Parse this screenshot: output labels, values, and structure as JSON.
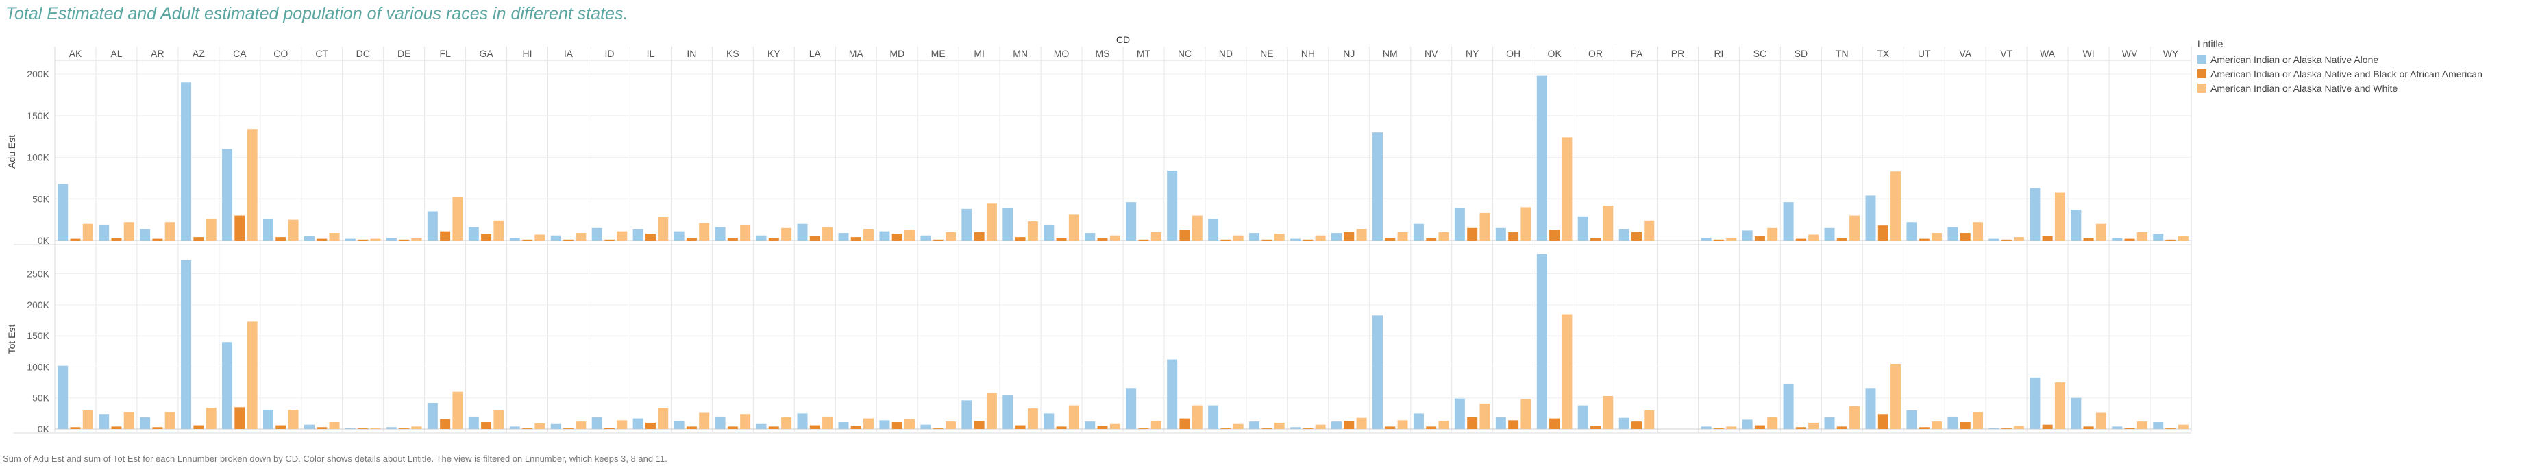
{
  "title": "Total Estimated and Adult estimated population of various races in different states.",
  "caption": "Sum of Adu Est and sum of Tot Est for each Lnnumber broken down by CD.  Color shows details about Lntitle. The view is filtered on Lnnumber, which keeps 3, 8 and 11.",
  "legend": {
    "title": "Lntitle",
    "items": [
      {
        "label": "American Indian or Alaska Native Alone",
        "color": "#9ecae9"
      },
      {
        "label": "American Indian or Alaska Native and Black or African American",
        "color": "#e8892e"
      },
      {
        "label": "American Indian or Alaska Native and White",
        "color": "#fbbf7e"
      }
    ]
  },
  "chart_data": {
    "type": "bar",
    "column_header": "CD",
    "categories": [
      "AK",
      "AL",
      "AR",
      "AZ",
      "CA",
      "CO",
      "CT",
      "DC",
      "DE",
      "FL",
      "GA",
      "HI",
      "IA",
      "ID",
      "IL",
      "IN",
      "KS",
      "KY",
      "LA",
      "MA",
      "MD",
      "ME",
      "MI",
      "MN",
      "MO",
      "MS",
      "MT",
      "NC",
      "ND",
      "NE",
      "NH",
      "NJ",
      "NM",
      "NV",
      "NY",
      "OH",
      "OK",
      "OR",
      "PA",
      "PR",
      "RI",
      "SC",
      "SD",
      "TN",
      "TX",
      "UT",
      "VA",
      "VT",
      "WA",
      "WI",
      "WV",
      "WY"
    ],
    "series_labels": [
      "American Indian or Alaska Native Alone",
      "American Indian or Alaska Native and Black or African American",
      "American Indian or Alaska Native and White"
    ],
    "panels": [
      {
        "ylabel": "Adu Est",
        "ylim": [
          0,
          210000
        ],
        "ticks": [
          0,
          50000,
          100000,
          150000,
          200000
        ],
        "tick_labels": [
          "0K",
          "50K",
          "100K",
          "150K",
          "200K"
        ],
        "values": [
          [
            68000,
            2000,
            20000
          ],
          [
            19000,
            3000,
            22000
          ],
          [
            14000,
            2000,
            22000
          ],
          [
            190000,
            4000,
            26000
          ],
          [
            110000,
            30000,
            134000
          ],
          [
            26000,
            4000,
            25000
          ],
          [
            5000,
            2000,
            9000
          ],
          [
            2000,
            1000,
            2000
          ],
          [
            3000,
            1000,
            3000
          ],
          [
            35000,
            11000,
            52000
          ],
          [
            16000,
            8000,
            24000
          ],
          [
            3000,
            1000,
            7000
          ],
          [
            6000,
            1000,
            9000
          ],
          [
            15000,
            1000,
            11000
          ],
          [
            14000,
            8000,
            28000
          ],
          [
            11000,
            3000,
            21000
          ],
          [
            16000,
            3000,
            19000
          ],
          [
            6000,
            3000,
            15000
          ],
          [
            20000,
            5000,
            16000
          ],
          [
            9000,
            4000,
            14000
          ],
          [
            11000,
            8000,
            13000
          ],
          [
            6000,
            1000,
            10000
          ],
          [
            38000,
            10000,
            45000
          ],
          [
            39000,
            4000,
            23000
          ],
          [
            19000,
            3000,
            31000
          ],
          [
            9000,
            3000,
            6000
          ],
          [
            46000,
            1000,
            10000
          ],
          [
            84000,
            13000,
            30000
          ],
          [
            26000,
            1000,
            6000
          ],
          [
            9000,
            1000,
            8000
          ],
          [
            2000,
            1000,
            6000
          ],
          [
            9000,
            10000,
            14000
          ],
          [
            130000,
            3000,
            10000
          ],
          [
            20000,
            3000,
            10000
          ],
          [
            39000,
            15000,
            33000
          ],
          [
            15000,
            10000,
            40000
          ],
          [
            198000,
            13000,
            124000
          ],
          [
            29000,
            3000,
            42000
          ],
          [
            14000,
            10000,
            24000
          ],
          [
            0,
            0,
            0
          ],
          [
            3000,
            1000,
            3000
          ],
          [
            12000,
            5000,
            15000
          ],
          [
            46000,
            2000,
            7000
          ],
          [
            15000,
            3000,
            30000
          ],
          [
            54000,
            18000,
            83000
          ],
          [
            22000,
            2000,
            9000
          ],
          [
            16000,
            9000,
            22000
          ],
          [
            2000,
            1000,
            4000
          ],
          [
            63000,
            5000,
            58000
          ],
          [
            37000,
            3000,
            20000
          ],
          [
            3000,
            2000,
            10000
          ],
          [
            8000,
            1000,
            5000
          ]
        ]
      },
      {
        "ylabel": "Tot Est",
        "ylim": [
          0,
          285000
        ],
        "ticks": [
          0,
          50000,
          100000,
          150000,
          200000,
          250000
        ],
        "tick_labels": [
          "0K",
          "50K",
          "100K",
          "150K",
          "200K",
          "250K"
        ],
        "values": [
          [
            102000,
            3000,
            30000
          ],
          [
            24000,
            4000,
            27000
          ],
          [
            19000,
            3000,
            27000
          ],
          [
            272000,
            6000,
            34000
          ],
          [
            140000,
            35000,
            173000
          ],
          [
            31000,
            6000,
            31000
          ],
          [
            7000,
            3000,
            11000
          ],
          [
            2000,
            1000,
            2000
          ],
          [
            3000,
            1000,
            4000
          ],
          [
            42000,
            16000,
            60000
          ],
          [
            20000,
            11000,
            30000
          ],
          [
            4000,
            1000,
            9000
          ],
          [
            8000,
            1000,
            12000
          ],
          [
            19000,
            2000,
            14000
          ],
          [
            17000,
            10000,
            34000
          ],
          [
            13000,
            4000,
            26000
          ],
          [
            20000,
            4000,
            24000
          ],
          [
            8000,
            4000,
            19000
          ],
          [
            25000,
            6000,
            20000
          ],
          [
            11000,
            5000,
            17000
          ],
          [
            14000,
            11000,
            16000
          ],
          [
            7000,
            1000,
            12000
          ],
          [
            46000,
            13000,
            58000
          ],
          [
            55000,
            6000,
            33000
          ],
          [
            25000,
            4000,
            38000
          ],
          [
            12000,
            5000,
            8000
          ],
          [
            66000,
            1000,
            13000
          ],
          [
            112000,
            17000,
            38000
          ],
          [
            38000,
            1000,
            8000
          ],
          [
            12000,
            1000,
            10000
          ],
          [
            3000,
            1000,
            7000
          ],
          [
            12000,
            13000,
            18000
          ],
          [
            183000,
            4000,
            14000
          ],
          [
            25000,
            4000,
            13000
          ],
          [
            49000,
            19000,
            41000
          ],
          [
            19000,
            14000,
            48000
          ],
          [
            282000,
            17000,
            185000
          ],
          [
            38000,
            5000,
            53000
          ],
          [
            18000,
            12000,
            30000
          ],
          [
            0,
            0,
            0
          ],
          [
            4000,
            1000,
            4000
          ],
          [
            15000,
            6000,
            19000
          ],
          [
            73000,
            3000,
            10000
          ],
          [
            19000,
            4000,
            37000
          ],
          [
            66000,
            24000,
            105000
          ],
          [
            30000,
            3000,
            12000
          ],
          [
            20000,
            11000,
            27000
          ],
          [
            2000,
            1000,
            5000
          ],
          [
            83000,
            7000,
            75000
          ],
          [
            50000,
            4000,
            26000
          ],
          [
            4000,
            2000,
            12000
          ],
          [
            11000,
            1000,
            7000
          ]
        ]
      }
    ]
  }
}
